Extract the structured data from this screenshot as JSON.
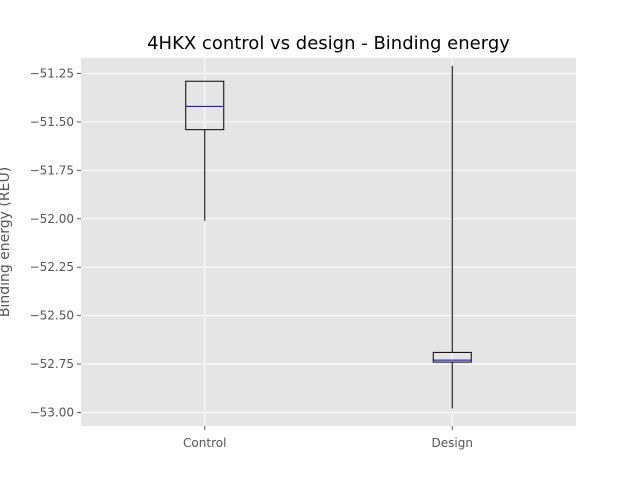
{
  "chart_data": {
    "type": "box",
    "title": "4HKX control vs design - Binding energy",
    "xlabel": "",
    "ylabel": "Binding energy (REU)",
    "categories": [
      "Control",
      "Design"
    ],
    "ylim": [
      -53.07,
      -51.17
    ],
    "yticks": [
      -51.25,
      -51.5,
      -51.75,
      -52.0,
      -52.25,
      -52.5,
      -52.75,
      -53.0
    ],
    "ytick_labels": [
      "−51.25",
      "−51.50",
      "−51.75",
      "−52.00",
      "−52.25",
      "−52.50",
      "−52.75",
      "−53.00"
    ],
    "grid": true,
    "boxes": [
      {
        "category": "Control",
        "whisker_low": -52.01,
        "q1": -51.54,
        "median": -51.42,
        "q3": -51.29,
        "whisker_high": -51.29
      },
      {
        "category": "Design",
        "whisker_low": -52.98,
        "q1": -52.74,
        "median": -52.73,
        "q3": -52.69,
        "whisker_high": -51.21
      }
    ],
    "colors": {
      "plot_background": "#E5E5E5",
      "grid": "#FFFFFF",
      "box_edge": "#000000",
      "median": "#0000CC",
      "tick_label": "#555555"
    }
  }
}
